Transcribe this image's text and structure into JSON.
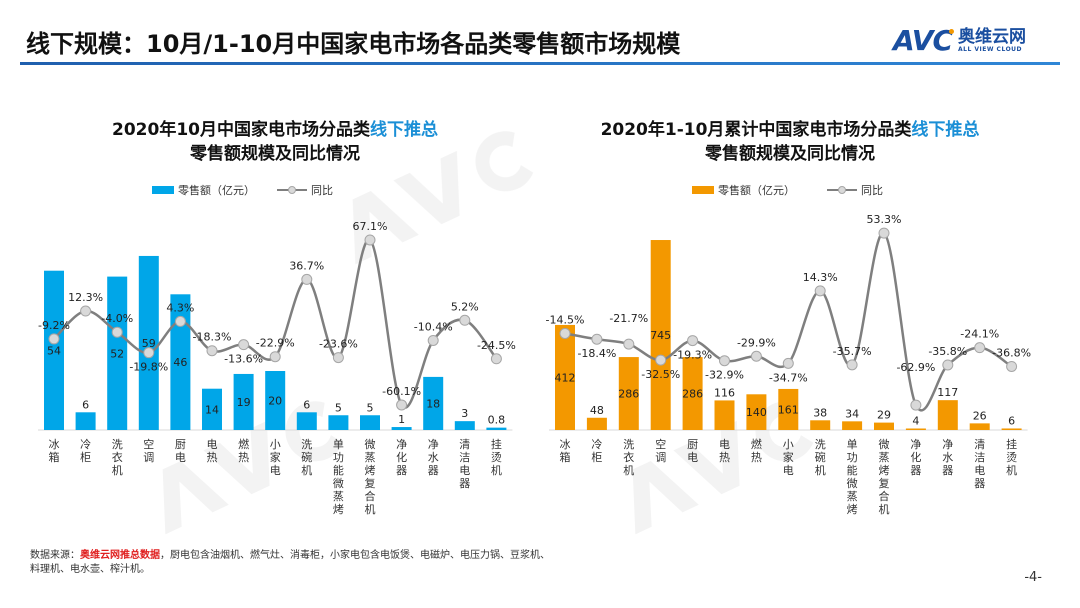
{
  "header": {
    "title": "线下规模：10月/1-10月中国家电市场各品类零售额市场规模"
  },
  "logo": {
    "mark": "AVC",
    "cn": "奥维云网",
    "en": "ALL VIEW CLOUD"
  },
  "watermark": "AVC 奥维云网",
  "chart_data": [
    {
      "type": "bar+line",
      "title_line1_a": "2020年10月中国家电市场分品类",
      "title_line1_b": "线下推总",
      "title_line2": "零售额规模及同比情况",
      "legend": [
        "零售额（亿元）",
        "同比"
      ],
      "bar_color": "#00a6e8",
      "line_color": "#7f7f7f",
      "categories": [
        "冰箱",
        "冷柜",
        "洗衣机",
        "空调",
        "厨电",
        "电热",
        "燃热",
        "小家电",
        "洗碗机",
        "单功能微蒸烤",
        "微蒸烤复合机",
        "净化器",
        "净水器",
        "清洁电器",
        "挂烫机"
      ],
      "bar_values": [
        54,
        6,
        52,
        59,
        46,
        14,
        19,
        20,
        6,
        5,
        5,
        1,
        18,
        3,
        0.8
      ],
      "bar_labels": [
        "54",
        "6",
        "52",
        "59",
        "46",
        "14",
        "19",
        "20",
        "6",
        "5",
        "5",
        "1",
        "18",
        "3",
        "0.8"
      ],
      "yoy_values": [
        -9.2,
        12.3,
        -4.0,
        -19.8,
        4.3,
        -18.3,
        -13.6,
        -22.9,
        36.7,
        -23.6,
        67.1,
        -60.1,
        -10.4,
        5.2,
        -24.5
      ],
      "yoy_labels": [
        "-9.2%",
        "12.3%",
        "-4.0%",
        "-19.8%",
        "4.3%",
        "-18.3%",
        "-13.6%",
        "-22.9%",
        "36.7%",
        "-23.6%",
        "67.1%",
        "-60.1%",
        "-10.4%",
        "5.2%",
        "-24.5%"
      ]
    },
    {
      "type": "bar+line",
      "title_line1_a": "2020年1-10月累计中国家电市场分品类",
      "title_line1_b": "线下推总",
      "title_line2": "零售额规模及同比情况",
      "legend": [
        "零售额（亿元）",
        "同比"
      ],
      "bar_color": "#f39800",
      "line_color": "#7f7f7f",
      "categories": [
        "冰箱",
        "冷柜",
        "洗衣机",
        "空调",
        "厨电",
        "电热",
        "燃热",
        "小家电",
        "洗碗机",
        "单功能微蒸烤",
        "微蒸烤复合机",
        "净化器",
        "净水器",
        "清洁电器",
        "挂烫机"
      ],
      "bar_values": [
        412,
        48,
        286,
        745,
        286,
        116,
        140,
        161,
        38,
        34,
        29,
        4,
        117,
        26,
        6
      ],
      "bar_labels": [
        "412",
        "48",
        "286",
        "745",
        "286",
        "116",
        "140",
        "161",
        "38",
        "34",
        "29",
        "4",
        "117",
        "26",
        "6"
      ],
      "yoy_values": [
        -14.5,
        -18.4,
        -21.7,
        -32.5,
        -19.3,
        -32.9,
        -29.9,
        -34.7,
        14.3,
        -35.7,
        53.3,
        -62.9,
        -35.8,
        -24.1,
        -36.8
      ],
      "yoy_labels": [
        "-14.5%",
        "-18.4%",
        "-21.7%",
        "-32.5%",
        "-19.3%",
        "-32.9%",
        "-29.9%",
        "-34.7%",
        "14.3%",
        "-35.7%",
        "53.3%",
        "-62.9%",
        "-35.8%",
        "-24.1%",
        "-36.8%"
      ]
    }
  ],
  "footer": {
    "prefix": "数据来源：",
    "source": "奥维云网推总数据",
    "note": "，厨电包含油烟机、燃气灶、消毒柜，小家电包含电饭煲、电磁炉、电压力锅、豆浆机、料理机、电水壶、榨汁机。"
  },
  "page_number": "-4-"
}
